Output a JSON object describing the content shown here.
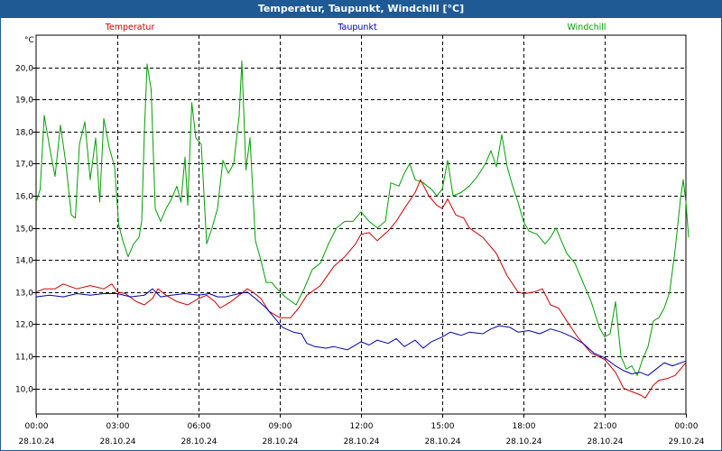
{
  "window": {
    "title": "Temperatur, Taupunkt, Windchill [°C]"
  },
  "chart_data": {
    "type": "line",
    "title": "Temperatur, Taupunkt, Windchill [°C]",
    "ylabel": "°C",
    "ylim": [
      9.2,
      21.0
    ],
    "xlim": [
      0,
      24
    ],
    "grid": true,
    "yticks": [
      10.0,
      11.0,
      12.0,
      13.0,
      14.0,
      15.0,
      16.0,
      17.0,
      18.0,
      19.0,
      20.0
    ],
    "ytick_labels": [
      "10,0",
      "11,0",
      "12,0",
      "13,0",
      "14,0",
      "15,0",
      "16,0",
      "17,0",
      "18,0",
      "19,0",
      "20,0"
    ],
    "xticks": [
      {
        "hour": 0,
        "time": "00:00",
        "date": "28.10.24"
      },
      {
        "hour": 3,
        "time": "03:00",
        "date": "28.10.24"
      },
      {
        "hour": 6,
        "time": "06:00",
        "date": "28.10.24"
      },
      {
        "hour": 9,
        "time": "09:00",
        "date": "28.10.24"
      },
      {
        "hour": 12,
        "time": "12:00",
        "date": "28.10.24"
      },
      {
        "hour": 15,
        "time": "15:00",
        "date": "28.10.24"
      },
      {
        "hour": 18,
        "time": "18:00",
        "date": "28.10.24"
      },
      {
        "hour": 21,
        "time": "21:00",
        "date": "28.10.24"
      },
      {
        "hour": 24,
        "time": "00:00",
        "date": "29.10.24"
      }
    ],
    "series": [
      {
        "name": "Temperatur",
        "color": "#d00000",
        "points": [
          [
            0,
            13.0
          ],
          [
            0.3,
            13.1
          ],
          [
            0.7,
            13.1
          ],
          [
            1.0,
            13.25
          ],
          [
            1.5,
            13.1
          ],
          [
            2.0,
            13.2
          ],
          [
            2.5,
            13.1
          ],
          [
            2.8,
            13.25
          ],
          [
            3.0,
            13.0
          ],
          [
            3.3,
            12.95
          ],
          [
            3.7,
            12.7
          ],
          [
            4.0,
            12.6
          ],
          [
            4.3,
            12.8
          ],
          [
            4.5,
            13.1
          ],
          [
            4.8,
            12.9
          ],
          [
            5.2,
            12.7
          ],
          [
            5.6,
            12.6
          ],
          [
            6.0,
            12.8
          ],
          [
            6.3,
            12.9
          ],
          [
            6.6,
            12.7
          ],
          [
            6.8,
            12.5
          ],
          [
            7.2,
            12.7
          ],
          [
            7.5,
            12.9
          ],
          [
            7.8,
            13.1
          ],
          [
            8.0,
            13.0
          ],
          [
            8.3,
            12.8
          ],
          [
            8.6,
            12.4
          ],
          [
            9.0,
            12.2
          ],
          [
            9.4,
            12.2
          ],
          [
            9.7,
            12.5
          ],
          [
            10.0,
            12.9
          ],
          [
            10.5,
            13.2
          ],
          [
            11.0,
            13.8
          ],
          [
            11.4,
            14.1
          ],
          [
            11.8,
            14.5
          ],
          [
            12.0,
            14.8
          ],
          [
            12.3,
            14.85
          ],
          [
            12.6,
            14.6
          ],
          [
            13.0,
            14.9
          ],
          [
            13.3,
            15.2
          ],
          [
            13.6,
            15.6
          ],
          [
            14.0,
            16.1
          ],
          [
            14.2,
            16.5
          ],
          [
            14.5,
            16.0
          ],
          [
            14.8,
            15.7
          ],
          [
            15.0,
            15.6
          ],
          [
            15.2,
            15.9
          ],
          [
            15.5,
            15.4
          ],
          [
            15.8,
            15.3
          ],
          [
            16.0,
            15.0
          ],
          [
            16.5,
            14.7
          ],
          [
            17.0,
            14.2
          ],
          [
            17.4,
            13.5
          ],
          [
            17.8,
            13.0
          ],
          [
            18.0,
            12.95
          ],
          [
            18.4,
            13.0
          ],
          [
            18.7,
            13.1
          ],
          [
            19.0,
            12.6
          ],
          [
            19.3,
            12.5
          ],
          [
            19.6,
            12.1
          ],
          [
            20.0,
            11.6
          ],
          [
            20.5,
            11.1
          ],
          [
            21.0,
            10.9
          ],
          [
            21.4,
            10.5
          ],
          [
            21.7,
            10.0
          ],
          [
            22.0,
            9.9
          ],
          [
            22.3,
            9.8
          ],
          [
            22.5,
            9.7
          ],
          [
            22.8,
            10.1
          ],
          [
            23.0,
            10.25
          ],
          [
            23.3,
            10.3
          ],
          [
            23.6,
            10.4
          ],
          [
            24.0,
            10.8
          ]
        ]
      },
      {
        "name": "Taupunkt",
        "color": "#0000b0",
        "points": [
          [
            0,
            12.85
          ],
          [
            0.5,
            12.9
          ],
          [
            1.0,
            12.85
          ],
          [
            1.5,
            12.95
          ],
          [
            2.0,
            12.9
          ],
          [
            2.5,
            12.95
          ],
          [
            3.0,
            12.95
          ],
          [
            3.5,
            12.85
          ],
          [
            4.0,
            12.9
          ],
          [
            4.3,
            13.1
          ],
          [
            4.6,
            12.85
          ],
          [
            5.0,
            12.9
          ],
          [
            5.5,
            12.95
          ],
          [
            6.0,
            12.9
          ],
          [
            6.4,
            12.95
          ],
          [
            6.7,
            12.85
          ],
          [
            7.0,
            12.85
          ],
          [
            7.5,
            12.95
          ],
          [
            7.8,
            13.0
          ],
          [
            8.1,
            12.8
          ],
          [
            8.5,
            12.5
          ],
          [
            8.8,
            12.2
          ],
          [
            9.1,
            11.9
          ],
          [
            9.5,
            11.75
          ],
          [
            9.8,
            11.7
          ],
          [
            10.0,
            11.4
          ],
          [
            10.3,
            11.3
          ],
          [
            10.7,
            11.25
          ],
          [
            11.0,
            11.3
          ],
          [
            11.5,
            11.2
          ],
          [
            12.0,
            11.45
          ],
          [
            12.3,
            11.35
          ],
          [
            12.6,
            11.5
          ],
          [
            13.0,
            11.4
          ],
          [
            13.3,
            11.55
          ],
          [
            13.6,
            11.3
          ],
          [
            14.0,
            11.5
          ],
          [
            14.3,
            11.25
          ],
          [
            14.6,
            11.45
          ],
          [
            15.0,
            11.6
          ],
          [
            15.3,
            11.75
          ],
          [
            15.7,
            11.65
          ],
          [
            16.0,
            11.75
          ],
          [
            16.5,
            11.7
          ],
          [
            16.8,
            11.85
          ],
          [
            17.1,
            11.95
          ],
          [
            17.5,
            11.9
          ],
          [
            17.8,
            11.75
          ],
          [
            18.2,
            11.8
          ],
          [
            18.6,
            11.7
          ],
          [
            19.0,
            11.85
          ],
          [
            19.4,
            11.75
          ],
          [
            19.8,
            11.6
          ],
          [
            20.2,
            11.4
          ],
          [
            20.6,
            11.1
          ],
          [
            21.0,
            10.95
          ],
          [
            21.4,
            10.7
          ],
          [
            21.7,
            10.55
          ],
          [
            22.0,
            10.45
          ],
          [
            22.3,
            10.5
          ],
          [
            22.6,
            10.4
          ],
          [
            22.9,
            10.6
          ],
          [
            23.2,
            10.8
          ],
          [
            23.5,
            10.7
          ],
          [
            24.0,
            10.85
          ]
        ]
      },
      {
        "name": "Windchill",
        "color": "#00a000",
        "points": [
          [
            0,
            15.8
          ],
          [
            0.15,
            16.2
          ],
          [
            0.3,
            18.5
          ],
          [
            0.5,
            17.5
          ],
          [
            0.7,
            16.6
          ],
          [
            0.9,
            18.2
          ],
          [
            1.1,
            17.0
          ],
          [
            1.3,
            15.4
          ],
          [
            1.45,
            15.3
          ],
          [
            1.6,
            17.6
          ],
          [
            1.8,
            18.3
          ],
          [
            2.0,
            16.5
          ],
          [
            2.2,
            17.8
          ],
          [
            2.35,
            15.8
          ],
          [
            2.5,
            18.4
          ],
          [
            2.7,
            17.5
          ],
          [
            2.9,
            16.9
          ],
          [
            3.05,
            15.1
          ],
          [
            3.2,
            14.6
          ],
          [
            3.4,
            14.1
          ],
          [
            3.6,
            14.5
          ],
          [
            3.8,
            14.7
          ],
          [
            3.9,
            15.2
          ],
          [
            4.0,
            18.0
          ],
          [
            4.1,
            20.1
          ],
          [
            4.25,
            19.3
          ],
          [
            4.4,
            15.6
          ],
          [
            4.6,
            15.2
          ],
          [
            4.8,
            15.6
          ],
          [
            5.0,
            15.9
          ],
          [
            5.2,
            16.3
          ],
          [
            5.35,
            15.8
          ],
          [
            5.5,
            17.2
          ],
          [
            5.6,
            15.7
          ],
          [
            5.75,
            18.9
          ],
          [
            5.9,
            17.8
          ],
          [
            6.1,
            17.6
          ],
          [
            6.3,
            14.5
          ],
          [
            6.5,
            15.0
          ],
          [
            6.7,
            15.6
          ],
          [
            6.9,
            17.1
          ],
          [
            7.1,
            16.7
          ],
          [
            7.3,
            17.0
          ],
          [
            7.5,
            18.5
          ],
          [
            7.6,
            20.2
          ],
          [
            7.75,
            16.8
          ],
          [
            7.9,
            17.8
          ],
          [
            8.1,
            14.6
          ],
          [
            8.3,
            14.0
          ],
          [
            8.5,
            13.3
          ],
          [
            8.7,
            13.3
          ],
          [
            8.9,
            13.1
          ],
          [
            9.2,
            12.85
          ],
          [
            9.6,
            12.6
          ],
          [
            9.9,
            13.1
          ],
          [
            10.2,
            13.7
          ],
          [
            10.5,
            13.9
          ],
          [
            10.8,
            14.5
          ],
          [
            11.1,
            15.0
          ],
          [
            11.4,
            15.2
          ],
          [
            11.7,
            15.2
          ],
          [
            12.0,
            15.5
          ],
          [
            12.3,
            15.2
          ],
          [
            12.6,
            15.0
          ],
          [
            12.9,
            15.2
          ],
          [
            13.1,
            16.4
          ],
          [
            13.4,
            16.3
          ],
          [
            13.6,
            16.7
          ],
          [
            13.8,
            17.0
          ],
          [
            14.0,
            16.5
          ],
          [
            14.3,
            16.4
          ],
          [
            14.6,
            16.2
          ],
          [
            14.8,
            16.0
          ],
          [
            15.0,
            16.2
          ],
          [
            15.2,
            17.1
          ],
          [
            15.4,
            16.0
          ],
          [
            15.7,
            16.1
          ],
          [
            16.0,
            16.3
          ],
          [
            16.3,
            16.6
          ],
          [
            16.6,
            17.0
          ],
          [
            16.8,
            17.4
          ],
          [
            17.0,
            16.9
          ],
          [
            17.2,
            17.9
          ],
          [
            17.4,
            16.9
          ],
          [
            17.6,
            16.3
          ],
          [
            17.8,
            15.8
          ],
          [
            18.0,
            15.2
          ],
          [
            18.2,
            14.9
          ],
          [
            18.5,
            14.8
          ],
          [
            18.8,
            14.5
          ],
          [
            19.0,
            14.7
          ],
          [
            19.2,
            15.0
          ],
          [
            19.4,
            14.6
          ],
          [
            19.6,
            14.2
          ],
          [
            19.9,
            13.9
          ],
          [
            20.2,
            13.3
          ],
          [
            20.5,
            12.7
          ],
          [
            20.8,
            11.9
          ],
          [
            21.0,
            11.6
          ],
          [
            21.2,
            11.7
          ],
          [
            21.4,
            12.7
          ],
          [
            21.6,
            11.0
          ],
          [
            21.8,
            10.6
          ],
          [
            22.0,
            10.7
          ],
          [
            22.2,
            10.4
          ],
          [
            22.4,
            10.9
          ],
          [
            22.6,
            11.3
          ],
          [
            22.8,
            12.1
          ],
          [
            23.0,
            12.2
          ],
          [
            23.2,
            12.5
          ],
          [
            23.4,
            13.0
          ],
          [
            23.6,
            14.3
          ],
          [
            23.8,
            15.9
          ],
          [
            23.9,
            16.5
          ],
          [
            24.0,
            15.8
          ],
          [
            24.1,
            14.7
          ]
        ]
      }
    ]
  }
}
